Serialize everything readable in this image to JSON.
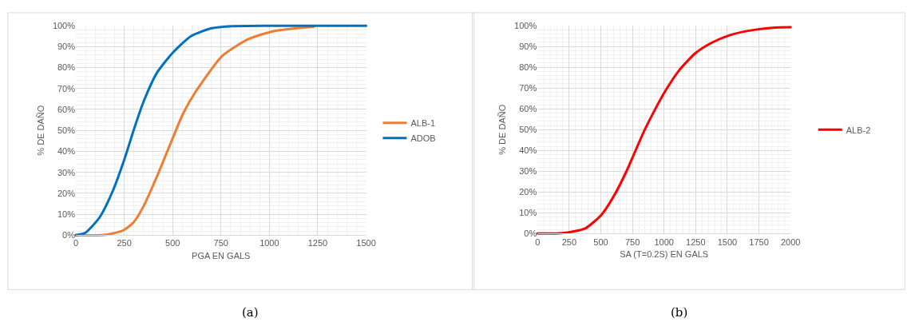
{
  "chart_data": [
    {
      "type": "line",
      "xlabel": "PGA EN GALS",
      "ylabel": "% DE DAÑO",
      "annotations": [
        "(a)"
      ],
      "xlim": [
        0,
        1500
      ],
      "xticks": [
        0,
        250,
        500,
        750,
        1000,
        1250,
        1500
      ],
      "ylim": [
        0,
        100
      ],
      "yticks": [
        {
          "value": 0,
          "label": "0%"
        },
        {
          "value": 10,
          "label": "10%"
        },
        {
          "value": 20,
          "label": "20%"
        },
        {
          "value": 30,
          "label": "30%"
        },
        {
          "value": 40,
          "label": "40%"
        },
        {
          "value": 50,
          "label": "50%"
        },
        {
          "value": 60,
          "label": "60%"
        },
        {
          "value": 70,
          "label": "70%"
        },
        {
          "value": 80,
          "label": "80%"
        },
        {
          "value": 90,
          "label": "90%"
        },
        {
          "value": 100,
          "label": "100%"
        }
      ],
      "grid": true,
      "legend": "right",
      "marker": "none",
      "line_style": "solid",
      "series": [
        {
          "name": "ALB-1",
          "color": "#ed7d31",
          "x": [
            0,
            149,
            243,
            297,
            351,
            419,
            486,
            554,
            622,
            757,
            892,
            1027,
            1230
          ],
          "values": [
            0,
            0.1,
            2.2,
            6,
            14,
            28,
            43,
            58,
            68.9,
            85.6,
            93.6,
            97.5,
            99.5
          ]
        },
        {
          "name": "ADOB",
          "color": "#0070c0",
          "x": [
            0,
            47,
            122,
            189,
            250,
            304,
            351,
            419,
            500,
            595,
            703,
            811,
            1000,
            1500
          ],
          "values": [
            0,
            1,
            8.4,
            20.7,
            36,
            51.6,
            64,
            77.5,
            87,
            95,
            98.8,
            99.8,
            100,
            100
          ]
        }
      ]
    },
    {
      "type": "line",
      "xlabel": "SA (T=0.2S) EN GALS",
      "ylabel": "% DE DAÑO",
      "annotations": [
        "(b)"
      ],
      "xlim": [
        0,
        2000
      ],
      "xticks": [
        0,
        250,
        500,
        750,
        1000,
        1250,
        1500,
        1750,
        2000
      ],
      "ylim": [
        0,
        100
      ],
      "yticks": [
        {
          "value": 0,
          "label": "0%"
        },
        {
          "value": 10,
          "label": "10%"
        },
        {
          "value": 20,
          "label": "20%"
        },
        {
          "value": 30,
          "label": "30%"
        },
        {
          "value": 40,
          "label": "40%"
        },
        {
          "value": 50,
          "label": "50%"
        },
        {
          "value": 60,
          "label": "60%"
        },
        {
          "value": 70,
          "label": "70%"
        },
        {
          "value": 80,
          "label": "80%"
        },
        {
          "value": 90,
          "label": "90%"
        },
        {
          "value": 100,
          "label": "100%"
        }
      ],
      "grid": true,
      "legend": "right",
      "marker": "none",
      "line_style": "solid",
      "series": [
        {
          "name": "ALB-2",
          "color": "#ff0000",
          "x": [
            0,
            196,
            377,
            504,
            612,
            703,
            775,
            848,
            920,
            1011,
            1120,
            1246,
            1373,
            1518,
            1663,
            1877,
            2000
          ],
          "values": [
            0,
            0.2,
            2.5,
            9,
            19,
            30,
            40,
            50,
            58.7,
            68.7,
            78.6,
            86.7,
            91.7,
            95.4,
            97.5,
            99.1,
            99.3
          ]
        }
      ]
    }
  ]
}
